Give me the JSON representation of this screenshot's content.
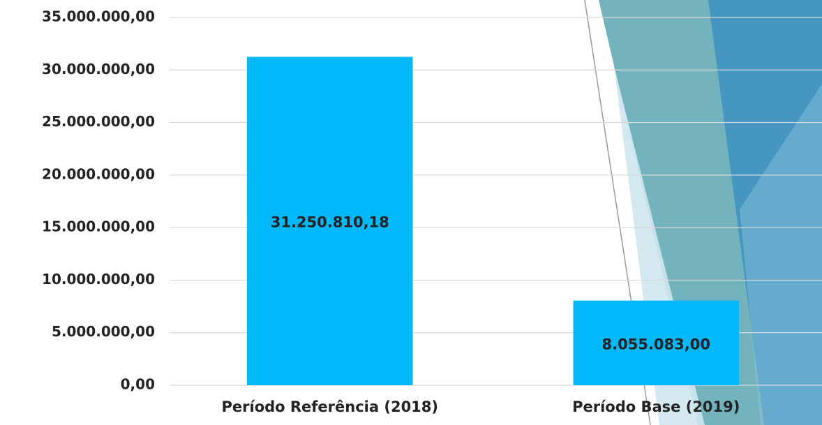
{
  "chart_data": {
    "type": "bar",
    "categories": [
      "Período Referência (2018)",
      "Período Base (2019)"
    ],
    "values": [
      31250810.18,
      8055083.0
    ],
    "value_labels": [
      "31.250.810,18",
      "8.055.083,00"
    ],
    "color": "#00b8fa",
    "ylim": [
      0,
      35000000
    ],
    "yticks": [
      {
        "value": 0,
        "label": "0,00"
      },
      {
        "value": 5000000,
        "label": "5.000.000,00"
      },
      {
        "value": 10000000,
        "label": "10.000.000,00"
      },
      {
        "value": 15000000,
        "label": "15.000.000,00"
      },
      {
        "value": 20000000,
        "label": "20.000.000,00"
      },
      {
        "value": 25000000,
        "label": "25.000.000,00"
      },
      {
        "value": 30000000,
        "label": "30.000.000,00"
      },
      {
        "value": 35000000,
        "label": "35.000.000,00"
      }
    ],
    "grid": true
  }
}
